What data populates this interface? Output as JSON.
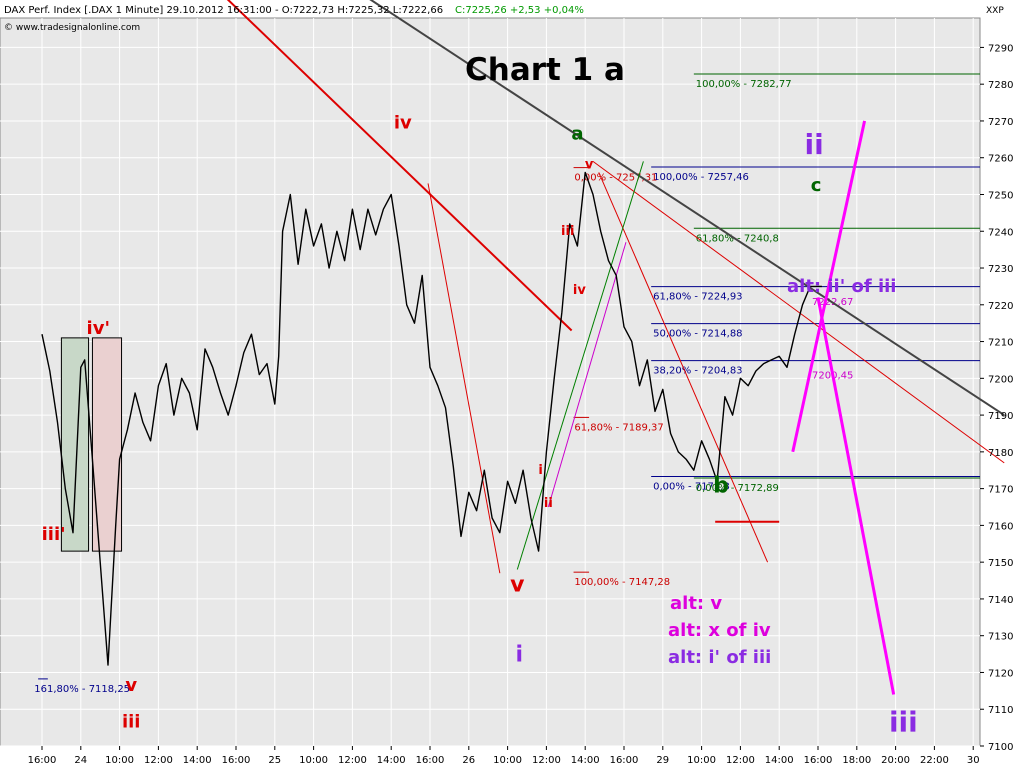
{
  "header": {
    "title_line": "DAX Perf. Index [.DAX  1 Minute] 29.10.2012 16:31:00 - O:7222,73 H:7225,32 L:7222,66",
    "close_line": "C:7225,26 +2,53 +0,04%",
    "copyright": "© www.tradesignalonline.com",
    "symbol": "XXP"
  },
  "chart_data": {
    "type": "line",
    "title": "Chart 1 a",
    "ylim": [
      7100,
      7298
    ],
    "y_ticks": [
      7100,
      7110,
      7120,
      7130,
      7140,
      7150,
      7160,
      7170,
      7180,
      7190,
      7200,
      7210,
      7220,
      7230,
      7240,
      7250,
      7260,
      7270,
      7280,
      7290
    ],
    "x_ticks": [
      {
        "label": "16:00",
        "x": 0
      },
      {
        "label": "24",
        "x": 1
      },
      {
        "label": "10:00",
        "x": 2
      },
      {
        "label": "12:00",
        "x": 3
      },
      {
        "label": "14:00",
        "x": 4
      },
      {
        "label": "16:00",
        "x": 5
      },
      {
        "label": "25",
        "x": 6
      },
      {
        "label": "10:00",
        "x": 7
      },
      {
        "label": "12:00",
        "x": 8
      },
      {
        "label": "14:00",
        "x": 9
      },
      {
        "label": "16:00",
        "x": 10
      },
      {
        "label": "26",
        "x": 11
      },
      {
        "label": "10:00",
        "x": 12
      },
      {
        "label": "12:00",
        "x": 13
      },
      {
        "label": "14:00",
        "x": 14
      },
      {
        "label": "16:00",
        "x": 15
      },
      {
        "label": "29",
        "x": 16
      },
      {
        "label": "10:00",
        "x": 17
      },
      {
        "label": "12:00",
        "x": 18
      },
      {
        "label": "14:00",
        "x": 19
      },
      {
        "label": "16:00",
        "x": 20
      },
      {
        "label": "18:00",
        "x": 21
      },
      {
        "label": "20:00",
        "x": 22
      },
      {
        "label": "22:00",
        "x": 23
      },
      {
        "label": "30",
        "x": 24
      }
    ],
    "price_series": {
      "x": [
        0,
        0.2,
        0.4,
        0.6,
        0.8,
        1.0,
        1.1,
        1.3,
        1.5,
        1.7,
        1.9,
        2.0,
        2.2,
        2.4,
        2.6,
        2.8,
        3.0,
        3.2,
        3.4,
        3.6,
        3.8,
        4.0,
        4.2,
        4.4,
        4.6,
        4.8,
        5.0,
        5.2,
        5.4,
        5.6,
        5.8,
        6.0,
        6.1,
        6.2,
        6.4,
        6.6,
        6.8,
        7.0,
        7.2,
        7.4,
        7.6,
        7.8,
        8.0,
        8.2,
        8.4,
        8.6,
        8.8,
        9.0,
        9.2,
        9.4,
        9.6,
        9.8,
        10.0,
        10.2,
        10.4,
        10.6,
        10.8,
        11.0,
        11.2,
        11.4,
        11.6,
        11.8,
        12.0,
        12.2,
        12.4,
        12.6,
        12.8,
        13.0,
        13.2,
        13.4,
        13.6,
        13.8,
        14.0,
        14.2,
        14.4,
        14.6,
        14.8,
        15.0,
        15.2,
        15.4,
        15.6,
        15.8,
        16.0,
        16.2,
        16.4,
        16.6,
        16.8,
        17.0,
        17.2,
        17.4,
        17.6,
        17.8,
        18.0,
        18.2,
        18.4,
        18.6,
        18.8,
        19.0,
        19.2,
        19.4,
        19.6,
        19.8,
        20.0,
        20.1
      ],
      "y": [
        7212,
        7202,
        7188,
        7170,
        7158,
        7203,
        7205,
        7178,
        7150,
        7122,
        7160,
        7178,
        7186,
        7196,
        7188,
        7183,
        7198,
        7204,
        7190,
        7200,
        7196,
        7186,
        7208,
        7203,
        7196,
        7190,
        7198,
        7207,
        7212,
        7201,
        7204,
        7193,
        7206,
        7240,
        7250,
        7231,
        7246,
        7236,
        7242,
        7230,
        7240,
        7232,
        7246,
        7235,
        7246,
        7239,
        7246,
        7250,
        7236,
        7220,
        7215,
        7228,
        7203,
        7198,
        7192,
        7176,
        7157,
        7169,
        7164,
        7175,
        7162,
        7158,
        7172,
        7166,
        7175,
        7162,
        7153,
        7180,
        7200,
        7218,
        7242,
        7236,
        7256,
        7250,
        7240,
        7232,
        7228,
        7214,
        7210,
        7198,
        7205,
        7191,
        7197,
        7185,
        7180,
        7178,
        7175,
        7183,
        7178,
        7172,
        7195,
        7190,
        7200,
        7198,
        7202,
        7204,
        7205,
        7206,
        7203,
        7212,
        7220,
        7225,
        7225,
        7225
      ],
      "color": "#000000"
    },
    "fib_levels": [
      {
        "label": "100,00% - 7282,77",
        "value": 7282.77,
        "color": "#006400"
      },
      {
        "label": "100,00% - 7257,46",
        "value": 7257.46,
        "color": "#00008b"
      },
      {
        "label": "0,00% - 7257,31",
        "value": 7257.31,
        "color": "#cc0000"
      },
      {
        "label": "61,80% - 7240,8",
        "value": 7240.8,
        "color": "#006400"
      },
      {
        "label": "61,80% - 7224,93",
        "value": 7224.93,
        "color": "#00008b"
      },
      {
        "label": "50,00% - 7214,88",
        "value": 7214.88,
        "color": "#00008b"
      },
      {
        "label": "38,20% - 7204,83",
        "value": 7204.83,
        "color": "#00008b"
      },
      {
        "label": "61,80% - 7189,37",
        "value": 7189.37,
        "color": "#cc0000"
      },
      {
        "label": "0,00% - 7173,3",
        "value": 7173.3,
        "color": "#00008b"
      },
      {
        "label": "0,00% - 7172,89",
        "value": 7172.89,
        "color": "#006400"
      },
      {
        "label": "100,00% - 7147,28",
        "value": 7147.28,
        "color": "#cc0000"
      },
      {
        "label": "161,80% - 7118,25",
        "value": 7118.25,
        "color": "#00008b"
      }
    ],
    "small_price_labels": [
      {
        "text": "7222,67",
        "x": 20.0,
        "y": 7221,
        "color": "#cc00cc"
      },
      {
        "text": "7200,45",
        "x": 20.0,
        "y": 7201,
        "color": "#cc00cc"
      }
    ],
    "wave_labels": [
      {
        "text": "iv",
        "x": 9.3,
        "y": 7268,
        "color": "#dd0000",
        "size": "m"
      },
      {
        "text": "a",
        "x": 13.8,
        "y": 7265,
        "color": "#006400",
        "size": "m"
      },
      {
        "text": "v",
        "x": 14.1,
        "y": 7257,
        "color": "#dd0000",
        "size": "s"
      },
      {
        "text": "iii",
        "x": 13.55,
        "y": 7239,
        "color": "#dd0000",
        "size": "s"
      },
      {
        "text": "iv",
        "x": 13.85,
        "y": 7223,
        "color": "#dd0000",
        "size": "s"
      },
      {
        "text": "i",
        "x": 12.85,
        "y": 7174,
        "color": "#dd0000",
        "size": "s"
      },
      {
        "text": "ii",
        "x": 13.05,
        "y": 7165,
        "color": "#dd0000",
        "size": "s"
      },
      {
        "text": "v",
        "x": 12.25,
        "y": 7142,
        "color": "#dd0000",
        "size": "l"
      },
      {
        "text": "i",
        "x": 12.3,
        "y": 7123,
        "color": "#8a2be2",
        "size": "l"
      },
      {
        "text": "iv'",
        "x": 1.45,
        "y": 7212,
        "color": "#dd0000",
        "size": "m"
      },
      {
        "text": "iii'",
        "x": 0.3,
        "y": 7156,
        "color": "#dd0000",
        "size": "m"
      },
      {
        "text": "v",
        "x": 2.3,
        "y": 7115,
        "color": "#dd0000",
        "size": "m"
      },
      {
        "text": "iii",
        "x": 2.3,
        "y": 7105,
        "color": "#dd0000",
        "size": "m"
      },
      {
        "text": "ii",
        "x": 19.9,
        "y": 7261,
        "color": "#8a2be2",
        "size": "xl"
      },
      {
        "text": "c",
        "x": 19.95,
        "y": 7251,
        "color": "#006400",
        "size": "m"
      },
      {
        "text": "b",
        "x": 17.5,
        "y": 7169,
        "color": "#006400",
        "size": "l"
      },
      {
        "text": "iii",
        "x": 22.2,
        "y": 7104,
        "color": "#8a2be2",
        "size": "xl"
      }
    ],
    "alt_labels": [
      {
        "text": "alt: ii' of iii",
        "color": "#8a2be2"
      },
      {
        "text": "alt: v",
        "color": "#dd00dd"
      },
      {
        "text": "alt: x of iv",
        "color": "#dd00dd"
      },
      {
        "text": "alt: i' of iii",
        "color": "#8a2be2"
      }
    ],
    "trendlines": [
      {
        "x1": 4.2,
        "y1": 7309,
        "x2": 13.65,
        "y2": 7213,
        "color": "#dd0000",
        "width": 2
      },
      {
        "x1": 7.6,
        "y1": 7309,
        "x2": 24.8,
        "y2": 7190,
        "color": "#444444",
        "width": 2
      },
      {
        "x1": 14.2,
        "y1": 7259,
        "x2": 24.8,
        "y2": 7177,
        "color": "#dd0000",
        "width": 1
      },
      {
        "x1": 9.95,
        "y1": 7253,
        "x2": 11.8,
        "y2": 7147,
        "color": "#dd0000",
        "width": 1
      },
      {
        "x1": 14.35,
        "y1": 7256,
        "x2": 18.7,
        "y2": 7150,
        "color": "#dd0000",
        "width": 1
      },
      {
        "x1": 12.25,
        "y1": 7148,
        "x2": 15.5,
        "y2": 7259,
        "color": "#008000",
        "width": 1
      },
      {
        "x1": 13.05,
        "y1": 7165,
        "x2": 15.05,
        "y2": 7237,
        "color": "#cc00cc",
        "width": 1
      },
      {
        "x1": 19.35,
        "y1": 7180,
        "x2": 21.2,
        "y2": 7270,
        "color": "#ff00ff",
        "width": 3
      },
      {
        "x1": 20.0,
        "y1": 7222,
        "x2": 21.95,
        "y2": 7114,
        "color": "#ff00ff",
        "width": 3
      }
    ],
    "boxes": [
      {
        "x1": 0.5,
        "x2": 1.2,
        "y1": 7153,
        "y2": 7211,
        "fill": "#c8d8c8"
      },
      {
        "x1": 1.3,
        "x2": 2.05,
        "y1": 7153,
        "y2": 7211,
        "fill": "#ead0d0"
      }
    ],
    "marker_line": {
      "x1": 17.35,
      "x2": 19.0,
      "y": 7161,
      "color": "#dd0000"
    }
  }
}
